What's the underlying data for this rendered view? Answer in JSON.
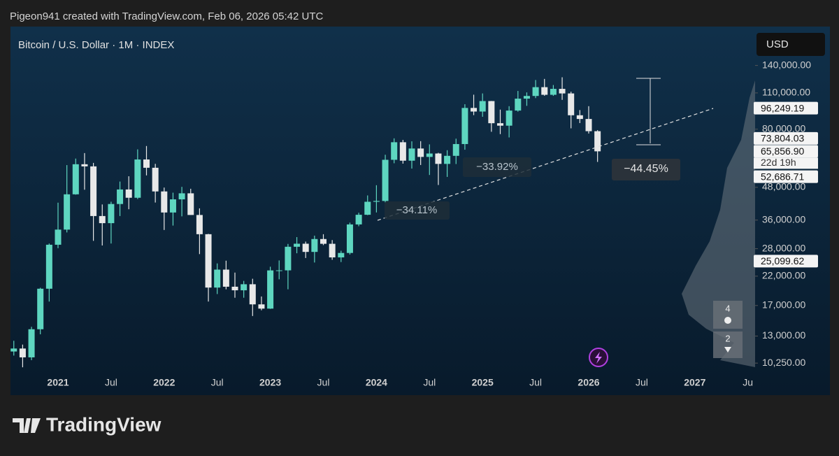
{
  "header": "Pigeon941 created with TradingView.com, Feb 06, 2026 05:42 UTC",
  "chart_data": {
    "type": "candlestick",
    "title": "Bitcoin / U.S. Dollar · 1M · INDEX",
    "currency": "USD",
    "categories": [
      null,
      null,
      null,
      null,
      null,
      "2021",
      null,
      null,
      null,
      null,
      null,
      "Jul",
      null,
      null,
      null,
      null,
      null,
      "2022",
      null,
      null,
      null,
      null,
      null,
      "Jul",
      null,
      null,
      null,
      null,
      null,
      "2023",
      null,
      null,
      null,
      null,
      null,
      "Jul",
      null,
      null,
      null,
      null,
      null,
      "2024",
      null,
      null,
      null,
      null,
      null,
      "Jul",
      null,
      null,
      null,
      null,
      null,
      "2025",
      null,
      null,
      null,
      null,
      null,
      "Jul",
      null,
      null,
      null,
      null,
      null,
      "2026",
      null,
      null,
      null,
      null,
      null,
      "Jul",
      null,
      null,
      null,
      null,
      null,
      "2027",
      null,
      null,
      null,
      null,
      null,
      "Ju"
    ],
    "open": [
      11350,
      11650,
      10780,
      13800,
      19700,
      28990,
      33110,
      45140,
      58790,
      57700,
      37300,
      35040,
      41460,
      47100,
      43800,
      61300,
      57000,
      46300,
      38480,
      43190,
      45540,
      37650,
      31800,
      19900,
      23300,
      20050,
      19430,
      20490,
      17170,
      16540,
      23140,
      23150,
      28480,
      29250,
      27220,
      30480,
      29230,
      25940,
      26970,
      34650,
      37720,
      42280,
      42580,
      61130,
      71330,
      60660,
      67500,
      62700,
      64600,
      58970,
      63300,
      70200,
      96400,
      93400,
      102400,
      84300,
      82500,
      94200,
      104600,
      107100,
      115700,
      108200,
      114000,
      109500,
      90400,
      87500,
      78600,
      null,
      null,
      null,
      null,
      null,
      null,
      null,
      null,
      null,
      null,
      null,
      null,
      null,
      null,
      null,
      null,
      null
    ],
    "high": [
      12470,
      12060,
      14100,
      19860,
      29300,
      41950,
      58350,
      61790,
      64850,
      59500,
      41300,
      42300,
      50500,
      52900,
      67000,
      69000,
      59000,
      47900,
      45800,
      48200,
      47400,
      39900,
      31900,
      24600,
      25200,
      22700,
      21100,
      21500,
      18400,
      23900,
      25250,
      29200,
      31000,
      29800,
      31400,
      31800,
      30200,
      27500,
      35200,
      38400,
      44700,
      48900,
      63900,
      73800,
      72800,
      71900,
      72000,
      70000,
      65000,
      66500,
      73600,
      99600,
      108300,
      109500,
      102500,
      95000,
      97900,
      111900,
      110500,
      123200,
      124400,
      117900,
      126200,
      111200,
      94600,
      97900,
      79300,
      null,
      null,
      null,
      null,
      null,
      null,
      null,
      null,
      null,
      null,
      null,
      null,
      null,
      null,
      null,
      null,
      null
    ],
    "low": [
      10950,
      9880,
      10520,
      13200,
      17600,
      28130,
      32300,
      45000,
      47000,
      30000,
      28800,
      29300,
      37300,
      39600,
      43300,
      53300,
      42000,
      33000,
      34300,
      37200,
      37700,
      26700,
      17600,
      18800,
      19600,
      18200,
      18200,
      15500,
      16300,
      16500,
      21400,
      19600,
      26900,
      25800,
      24800,
      28900,
      25400,
      24900,
      26600,
      34100,
      37600,
      38500,
      41900,
      59300,
      59100,
      56600,
      58400,
      53500,
      49000,
      52600,
      58900,
      66800,
      90500,
      89200,
      78200,
      76600,
      74400,
      93300,
      98200,
      105100,
      107300,
      107200,
      103500,
      80600,
      84400,
      77000,
      60000,
      null,
      null,
      null,
      null,
      null,
      null,
      null,
      null,
      null,
      null,
      null,
      null,
      null,
      null,
      null,
      null,
      null
    ],
    "close": [
      11650,
      10780,
      13800,
      19700,
      28990,
      33110,
      45140,
      58790,
      57700,
      37300,
      35040,
      41460,
      47100,
      43800,
      61300,
      57000,
      46300,
      38480,
      43190,
      45540,
      37650,
      31800,
      19900,
      23300,
      20050,
      19430,
      20490,
      17170,
      16540,
      23140,
      23150,
      28480,
      29250,
      27220,
      30480,
      29230,
      25940,
      26970,
      34650,
      37720,
      42280,
      42580,
      61130,
      71330,
      60660,
      67500,
      62700,
      64600,
      58970,
      63300,
      70200,
      96400,
      93400,
      102400,
      84300,
      82500,
      94200,
      104600,
      107100,
      115700,
      108200,
      114000,
      109500,
      90400,
      87500,
      78600,
      65856.9,
      null,
      null,
      null,
      null,
      null,
      null,
      null,
      null,
      null,
      null,
      null,
      null,
      null,
      null,
      null,
      null,
      null
    ],
    "up_color": "#5ed6c0",
    "down_color": "#e8e8e8",
    "log_scale": true,
    "grid": false,
    "ylim": [
      9300,
      197000
    ],
    "yticks": [
      {
        "value": 10250,
        "label": "10,250.00"
      },
      {
        "value": 13000,
        "label": "13,000.00"
      },
      {
        "value": 17000,
        "label": "17,000.00"
      },
      {
        "value": 22000,
        "label": "22,000.00"
      },
      {
        "value": 28000,
        "label": "28,000.00"
      },
      {
        "value": 36000,
        "label": "36,000.00"
      },
      {
        "value": 48000,
        "label": "48,000.00"
      },
      {
        "value": 80000,
        "label": "80,000.00"
      },
      {
        "value": 110000,
        "label": "110,000.00"
      },
      {
        "value": 140000,
        "label": "140,000.00"
      }
    ],
    "price_labels": [
      {
        "value": 96249.19,
        "label": "96,249.19"
      },
      {
        "value": 73804.03,
        "label": "73,804.03"
      },
      {
        "value": 65856.9,
        "label": "65,856.90"
      },
      {
        "value": 52686.71,
        "label": "52,686.71"
      },
      {
        "value": 25099.62,
        "label": "25,099.62"
      }
    ],
    "countdown": "22d 19h",
    "annotations": [
      "−34.11%",
      "−33.92%",
      "−44.45%"
    ]
  },
  "badges": [
    "4",
    "2"
  ],
  "footer": {
    "brand": "TradingView"
  }
}
